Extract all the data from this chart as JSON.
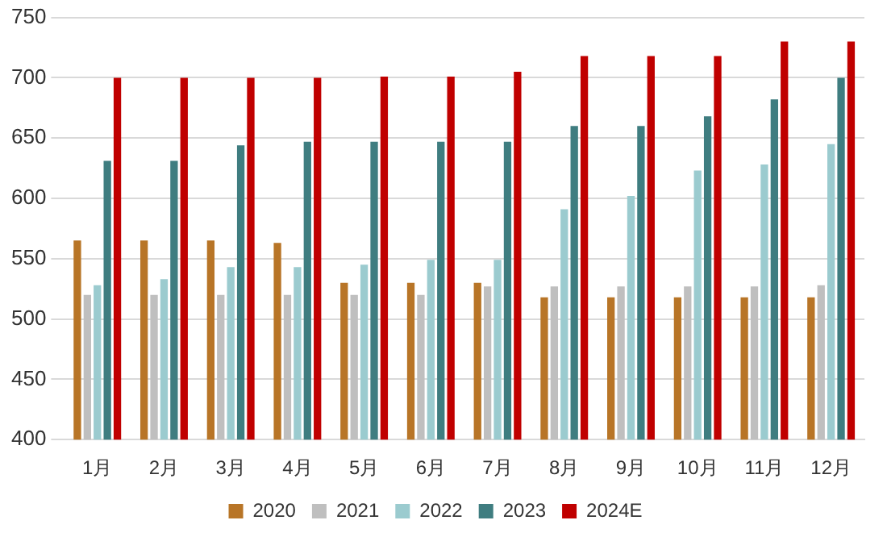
{
  "chart_data": {
    "type": "bar",
    "categories": [
      "1月",
      "2月",
      "3月",
      "4月",
      "5月",
      "6月",
      "7月",
      "8月",
      "9月",
      "10月",
      "11月",
      "12月"
    ],
    "series": [
      {
        "name": "2020",
        "color": "#b87527",
        "values": [
          565,
          565,
          565,
          563,
          530,
          530,
          530,
          518,
          518,
          518,
          518,
          518
        ]
      },
      {
        "name": "2021",
        "color": "#bfbfbf",
        "values": [
          520,
          520,
          520,
          520,
          520,
          520,
          527,
          527,
          527,
          527,
          527,
          528
        ]
      },
      {
        "name": "2022",
        "color": "#9bcbcf",
        "values": [
          528,
          533,
          543,
          543,
          545,
          549,
          549,
          591,
          602,
          623,
          628,
          645
        ]
      },
      {
        "name": "2023",
        "color": "#3f7d80",
        "values": [
          631,
          631,
          644,
          647,
          647,
          647,
          647,
          660,
          660,
          668,
          682,
          700
        ]
      },
      {
        "name": "2024E",
        "color": "#c00000",
        "values": [
          700,
          700,
          700,
          700,
          701,
          701,
          705,
          718,
          718,
          718,
          730,
          730
        ]
      }
    ],
    "ylim": [
      400,
      750
    ],
    "yticks": [
      400,
      450,
      500,
      550,
      600,
      650,
      700,
      750
    ],
    "grid": "y",
    "legend": "bottom"
  }
}
